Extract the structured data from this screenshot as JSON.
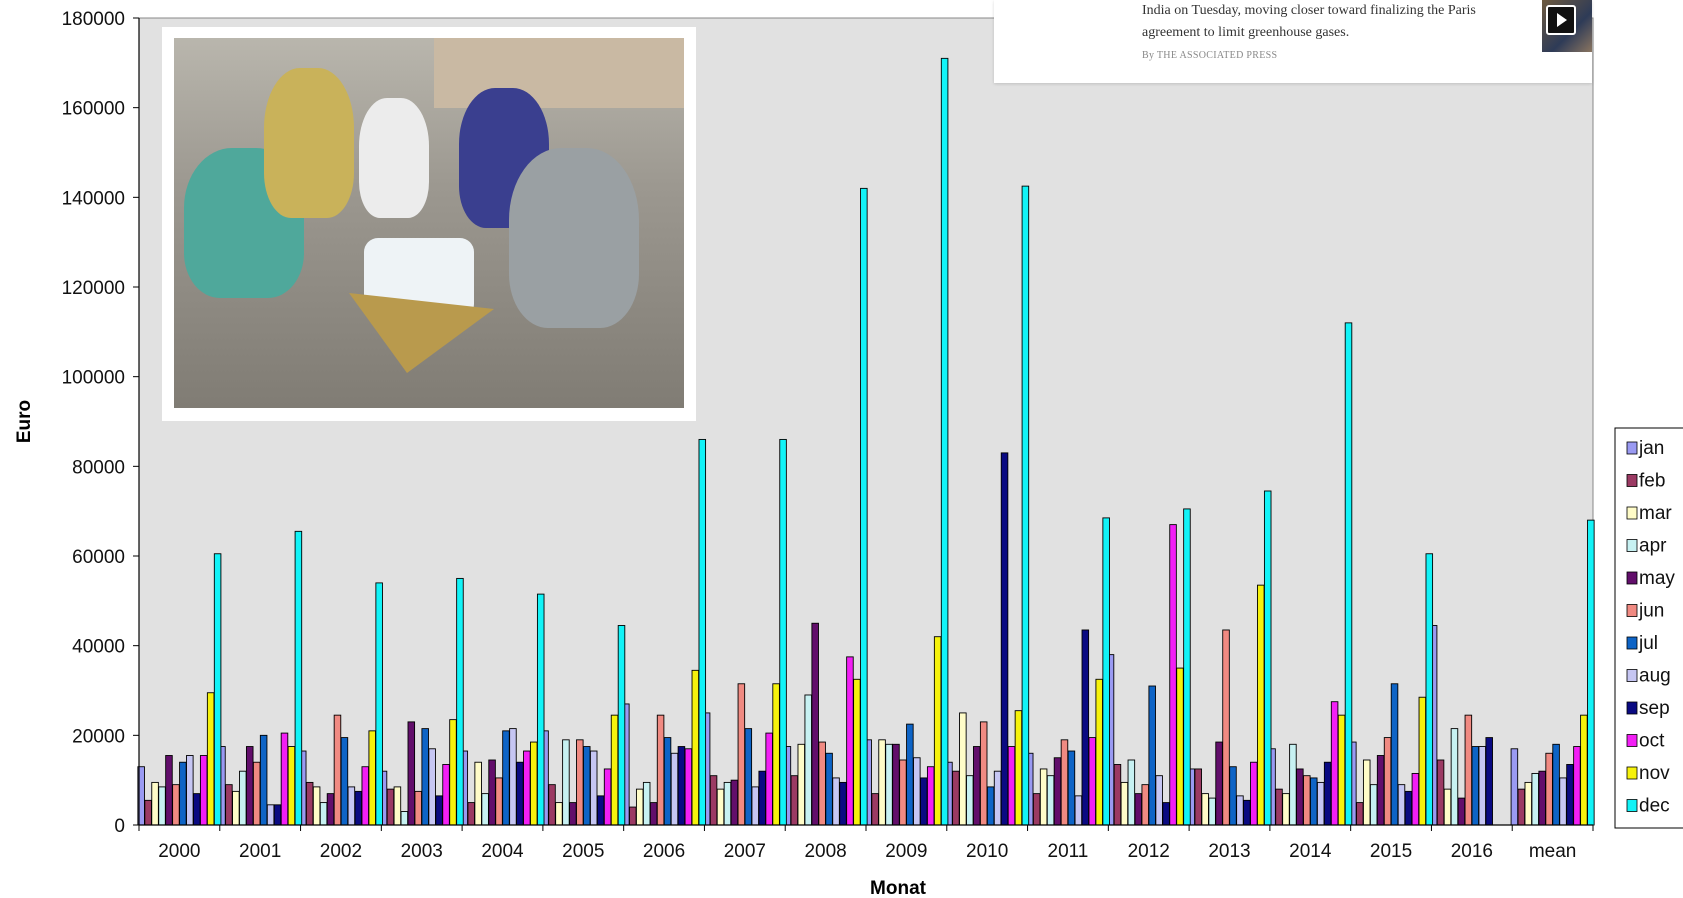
{
  "news": {
    "text_line1": "India on Tuesday, moving closer toward finalizing the Paris",
    "text_line2": "agreement to limit greenhouse gases.",
    "byline": "By THE ASSOCIATED PRESS",
    "thumb_icon": "play-icon"
  },
  "colors": {
    "plot_bg": "#e1e1e1",
    "jan": "#9a9af2",
    "feb": "#9b3a63",
    "mar": "#fffcc8",
    "apr": "#c7f1f2",
    "may": "#620e6b",
    "jun": "#f08a82",
    "jul": "#0e64c6",
    "aug": "#c6c6f3",
    "sep": "#0a0a82",
    "oct": "#f21ff5",
    "nov": "#f6f20c",
    "dec": "#12f3f7"
  },
  "chart_data": {
    "type": "bar",
    "xlabel": "Monat",
    "ylabel": "Euro",
    "ylim": [
      0,
      180000
    ],
    "yticks": [
      "0",
      "20000",
      "40000",
      "60000",
      "80000",
      "100000",
      "120000",
      "140000",
      "160000",
      "180000"
    ],
    "grid": false,
    "legend_position": "right",
    "categories": [
      "2000",
      "2001",
      "2002",
      "2003",
      "2004",
      "2005",
      "2006",
      "2007",
      "2008",
      "2009",
      "2010",
      "2011",
      "2012",
      "2013",
      "2014",
      "2015",
      "2016",
      "mean"
    ],
    "series": [
      {
        "name": "jan",
        "values": [
          13000,
          17500,
          16500,
          12000,
          16500,
          21000,
          27000,
          25000,
          17500,
          19000,
          14000,
          16000,
          38000,
          12500,
          17000,
          18500,
          44500,
          17000
        ]
      },
      {
        "name": "feb",
        "values": [
          5500,
          9000,
          9500,
          8000,
          5000,
          9000,
          4000,
          11000,
          11000,
          7000,
          12000,
          7000,
          13500,
          12500,
          8000,
          5000,
          14500,
          8000
        ]
      },
      {
        "name": "mar",
        "values": [
          9500,
          7500,
          8500,
          8500,
          14000,
          5000,
          8000,
          8000,
          18000,
          19000,
          25000,
          12500,
          9500,
          7000,
          7000,
          14500,
          8000,
          9500
        ]
      },
      {
        "name": "apr",
        "values": [
          8500,
          12000,
          5000,
          3000,
          7000,
          19000,
          9500,
          9500,
          29000,
          18000,
          11000,
          11000,
          14500,
          6000,
          18000,
          9000,
          21500,
          11500
        ]
      },
      {
        "name": "may",
        "values": [
          15500,
          17500,
          7000,
          23000,
          14500,
          5000,
          5000,
          10000,
          45000,
          18000,
          17500,
          15000,
          7000,
          18500,
          12500,
          15500,
          6000,
          12000
        ]
      },
      {
        "name": "jun",
        "values": [
          9000,
          14000,
          24500,
          7500,
          10500,
          19000,
          24500,
          31500,
          18500,
          14500,
          23000,
          19000,
          9000,
          43500,
          11000,
          19500,
          24500,
          16000
        ]
      },
      {
        "name": "jul",
        "values": [
          14000,
          20000,
          19500,
          21500,
          21000,
          17500,
          19500,
          21500,
          16000,
          22500,
          8500,
          16500,
          31000,
          13000,
          10500,
          31500,
          17500,
          18000
        ]
      },
      {
        "name": "aug",
        "values": [
          15500,
          4500,
          8500,
          17000,
          21500,
          16500,
          16000,
          8500,
          10500,
          15000,
          12000,
          6500,
          11000,
          6500,
          9500,
          9000,
          17500,
          10500
        ]
      },
      {
        "name": "sep",
        "values": [
          7000,
          4500,
          7500,
          6500,
          14000,
          6500,
          17500,
          12000,
          9500,
          10500,
          83000,
          43500,
          5000,
          5500,
          14000,
          7500,
          19500,
          13500
        ]
      },
      {
        "name": "oct",
        "values": [
          15500,
          20500,
          13000,
          13500,
          16500,
          12500,
          17000,
          20500,
          37500,
          13000,
          17500,
          19500,
          67000,
          14000,
          27500,
          11500,
          0,
          17500
        ]
      },
      {
        "name": "nov",
        "values": [
          29500,
          17500,
          21000,
          23500,
          18500,
          24500,
          34500,
          31500,
          32500,
          42000,
          25500,
          32500,
          35000,
          53500,
          24500,
          28500,
          0,
          24500
        ]
      },
      {
        "name": "dec",
        "values": [
          60500,
          65500,
          54000,
          55000,
          51500,
          44500,
          86000,
          86000,
          142000,
          171000,
          142500,
          68500,
          70500,
          74500,
          112000,
          60500,
          0,
          68000
        ]
      }
    ]
  }
}
